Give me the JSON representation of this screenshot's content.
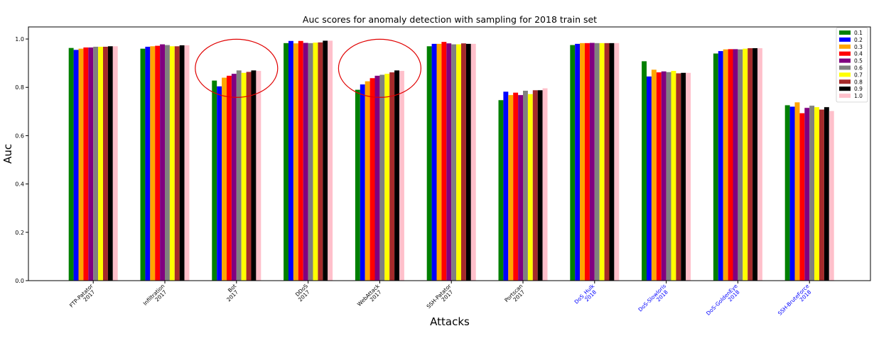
{
  "chart_data": {
    "type": "bar",
    "title": "Auc scores for anomaly detection with sampling for 2018 train set",
    "xlabel": "Attacks",
    "ylabel": "Auc",
    "ylim": [
      0,
      1.05
    ],
    "yticks": [
      "0.0",
      "0.2",
      "0.4",
      "0.6",
      "0.8",
      "1.0"
    ],
    "grid": false,
    "legend_position": "top-right",
    "categories": [
      [
        "FTP-Patator",
        "2017"
      ],
      [
        "Infiltration",
        "2017"
      ],
      [
        "Bot",
        "2017"
      ],
      [
        "DDoS",
        "2017"
      ],
      [
        "WebAttack",
        "2017"
      ],
      [
        "SSH-Patator",
        "2017"
      ],
      [
        "Portscan",
        "2017"
      ],
      [
        "DoS_Hulk",
        "2018"
      ],
      [
        "DoS-Slowloris",
        "2018"
      ],
      [
        "DoS-GoldenEye",
        "2018"
      ],
      [
        "SSH-BruteForce",
        "2018"
      ]
    ],
    "category_label_colors": [
      "#000000",
      "#000000",
      "#000000",
      "#000000",
      "#000000",
      "#000000",
      "#000000",
      "#0000ff",
      "#0000ff",
      "#0000ff",
      "#0000ff"
    ],
    "highlighted_categories": [
      "Bot",
      "WebAttack"
    ],
    "highlight_color": "#e00000",
    "series": [
      {
        "name": "0.1",
        "color": "#008000",
        "values": [
          0.963,
          0.96,
          0.828,
          0.983,
          0.79,
          0.97,
          0.747,
          0.975,
          0.908,
          0.94,
          0.726
        ]
      },
      {
        "name": "0.2",
        "color": "#0000ff",
        "values": [
          0.955,
          0.968,
          0.804,
          0.992,
          0.812,
          0.98,
          0.782,
          0.98,
          0.845,
          0.95,
          0.72
        ]
      },
      {
        "name": "0.3",
        "color": "#ffa500",
        "values": [
          0.96,
          0.97,
          0.84,
          0.982,
          0.825,
          0.98,
          0.768,
          0.983,
          0.873,
          0.957,
          0.738
        ]
      },
      {
        "name": "0.4",
        "color": "#ff0000",
        "values": [
          0.965,
          0.972,
          0.848,
          0.992,
          0.838,
          0.988,
          0.778,
          0.983,
          0.862,
          0.958,
          0.693
        ]
      },
      {
        "name": "0.5",
        "color": "#800080",
        "values": [
          0.965,
          0.978,
          0.856,
          0.984,
          0.848,
          0.982,
          0.768,
          0.984,
          0.866,
          0.958,
          0.715
        ]
      },
      {
        "name": "0.6",
        "color": "#808080",
        "values": [
          0.968,
          0.975,
          0.87,
          0.983,
          0.852,
          0.978,
          0.786,
          0.983,
          0.863,
          0.957,
          0.724
        ]
      },
      {
        "name": "0.7",
        "color": "#ffff00",
        "values": [
          0.968,
          0.97,
          0.86,
          0.985,
          0.856,
          0.978,
          0.772,
          0.983,
          0.868,
          0.96,
          0.718
        ]
      },
      {
        "name": "0.8",
        "color": "#a52a2a",
        "values": [
          0.968,
          0.97,
          0.864,
          0.986,
          0.862,
          0.982,
          0.788,
          0.983,
          0.858,
          0.962,
          0.708
        ]
      },
      {
        "name": "0.9",
        "color": "#000000",
        "values": [
          0.97,
          0.974,
          0.87,
          0.993,
          0.87,
          0.98,
          0.788,
          0.983,
          0.86,
          0.962,
          0.718
        ]
      },
      {
        "name": "1.0",
        "color": "#ffc0cb",
        "values": [
          0.97,
          0.974,
          0.868,
          0.993,
          0.868,
          0.98,
          0.796,
          0.983,
          0.86,
          0.962,
          0.702
        ]
      }
    ]
  }
}
